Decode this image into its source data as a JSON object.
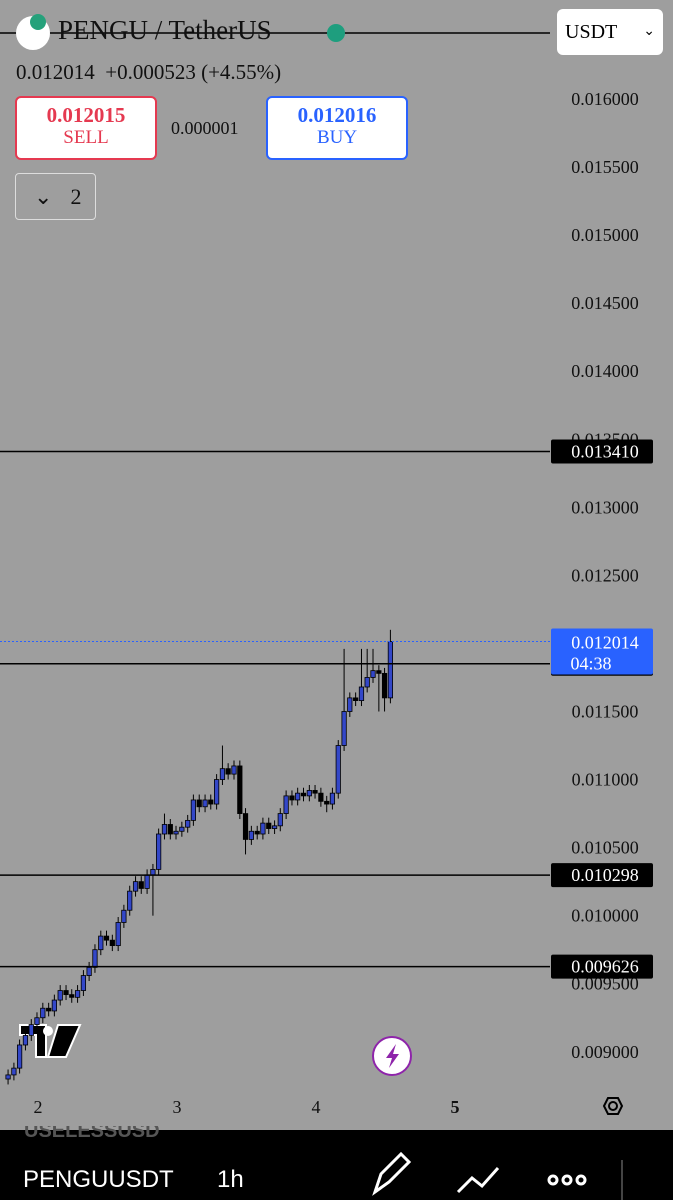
{
  "header": {
    "symbol": "PENGU / TetherUS",
    "last": "0.012014",
    "change": "+0.000523",
    "change_pct": "(+4.55%)",
    "sell_price": "0.012015",
    "sell_label": "SELL",
    "spread": "0.000001",
    "buy_price": "0.012016",
    "buy_label": "BUY",
    "indicators": "2",
    "currency": "USDT"
  },
  "chart_data": {
    "type": "candlestick",
    "x": [
      1.785,
      1.827,
      1.868,
      1.91,
      1.952,
      1.993,
      2.035,
      2.077,
      2.118,
      2.16,
      2.202,
      2.243,
      2.285,
      2.327,
      2.368,
      2.41,
      2.452,
      2.493,
      2.535,
      2.577,
      2.618,
      2.66,
      2.702,
      2.743,
      2.785,
      2.827,
      2.868,
      2.91,
      2.952,
      2.993,
      3.035,
      3.077,
      3.118,
      3.16,
      3.202,
      3.243,
      3.285,
      3.327,
      3.368,
      3.41,
      3.452,
      3.493,
      3.535,
      3.577,
      3.618,
      3.66,
      3.702,
      3.743,
      3.785,
      3.827,
      3.868,
      3.91,
      3.952,
      3.993,
      4.035,
      4.077,
      4.118,
      4.16,
      4.202,
      4.243,
      4.285,
      4.327,
      4.368,
      4.41,
      4.452,
      4.493,
      4.535
    ],
    "open": [
      0.0088,
      0.00883,
      0.00888,
      0.00905,
      0.00912,
      0.0092,
      0.00925,
      0.00932,
      0.0093,
      0.00938,
      0.00945,
      0.00942,
      0.0094,
      0.00945,
      0.00956,
      0.00962,
      0.00975,
      0.00985,
      0.00982,
      0.00978,
      0.00995,
      0.01004,
      0.01018,
      0.01025,
      0.0102,
      0.0103,
      0.01034,
      0.0106,
      0.01067,
      0.0106,
      0.01062,
      0.01065,
      0.0107,
      0.01085,
      0.0108,
      0.01085,
      0.01082,
      0.011,
      0.01108,
      0.01104,
      0.0111,
      0.01075,
      0.01056,
      0.01062,
      0.0106,
      0.01068,
      0.01064,
      0.01066,
      0.01075,
      0.01088,
      0.01085,
      0.0109,
      0.01088,
      0.01092,
      0.0109,
      0.01084,
      0.01082,
      0.0109,
      0.01125,
      0.0115,
      0.0116,
      0.01158,
      0.01168,
      0.01175,
      0.0118,
      0.01178,
      0.0116
    ],
    "high": [
      0.00887,
      0.00892,
      0.00909,
      0.00916,
      0.00924,
      0.00929,
      0.00936,
      0.00936,
      0.00942,
      0.00949,
      0.00949,
      0.00946,
      0.00949,
      0.0096,
      0.00966,
      0.00979,
      0.00989,
      0.00989,
      0.00986,
      0.00999,
      0.01008,
      0.01022,
      0.01029,
      0.01029,
      0.01034,
      0.01038,
      0.01064,
      0.01075,
      0.01071,
      0.01066,
      0.01069,
      0.01074,
      0.01089,
      0.01089,
      0.01089,
      0.01089,
      0.01104,
      0.01125,
      0.01112,
      0.01114,
      0.01114,
      0.01079,
      0.01066,
      0.01066,
      0.01072,
      0.01072,
      0.0107,
      0.01079,
      0.01092,
      0.01092,
      0.01094,
      0.01094,
      0.01096,
      0.01096,
      0.01094,
      0.01088,
      0.01094,
      0.01129,
      0.01196,
      0.01164,
      0.01164,
      0.01196,
      0.01196,
      0.01196,
      0.01184,
      0.01182,
      0.0121
    ],
    "low": [
      0.00876,
      0.00879,
      0.00884,
      0.00901,
      0.00908,
      0.00916,
      0.00921,
      0.00926,
      0.00926,
      0.00934,
      0.00938,
      0.00936,
      0.00936,
      0.00941,
      0.00952,
      0.00958,
      0.00971,
      0.00978,
      0.00974,
      0.00974,
      0.00991,
      0.01,
      0.01014,
      0.01016,
      0.01016,
      0.01,
      0.0103,
      0.01056,
      0.01056,
      0.01056,
      0.01058,
      0.01061,
      0.01066,
      0.01076,
      0.01076,
      0.01078,
      0.01078,
      0.01096,
      0.011,
      0.011,
      0.01071,
      0.01045,
      0.01052,
      0.01056,
      0.01056,
      0.0106,
      0.0106,
      0.01062,
      0.01071,
      0.01081,
      0.01081,
      0.01084,
      0.01084,
      0.01086,
      0.0108,
      0.01076,
      0.01078,
      0.01086,
      0.01121,
      0.01146,
      0.01154,
      0.01154,
      0.01164,
      0.01171,
      0.0115,
      0.0115,
      0.01156
    ],
    "close": [
      0.00883,
      0.00888,
      0.00905,
      0.00912,
      0.0092,
      0.00925,
      0.00932,
      0.0093,
      0.00938,
      0.00945,
      0.00942,
      0.0094,
      0.00945,
      0.00956,
      0.00962,
      0.00975,
      0.00985,
      0.00982,
      0.00978,
      0.00995,
      0.01004,
      0.01018,
      0.01025,
      0.0102,
      0.0103,
      0.01034,
      0.0106,
      0.01067,
      0.0106,
      0.01062,
      0.01065,
      0.0107,
      0.01085,
      0.0108,
      0.01085,
      0.01082,
      0.011,
      0.01108,
      0.01104,
      0.0111,
      0.01075,
      0.01056,
      0.01062,
      0.0106,
      0.01068,
      0.01064,
      0.01066,
      0.01075,
      0.01088,
      0.01085,
      0.0109,
      0.01088,
      0.01092,
      0.0109,
      0.01084,
      0.01082,
      0.0109,
      0.01125,
      0.0115,
      0.0116,
      0.01158,
      0.01168,
      0.01175,
      0.0118,
      0.01178,
      0.0116,
      0.012014
    ],
    "up_color": "#3347c8",
    "down_color": "#000000",
    "xlim": [
      1.727,
      5.683
    ],
    "xticks": [
      2,
      3,
      4,
      5
    ],
    "ylim": [
      0.008756,
      0.016727
    ],
    "yticks": [
      {
        "value": 0.016,
        "label": "0.016000"
      },
      {
        "value": 0.0155,
        "label": "0.015500"
      },
      {
        "value": 0.015,
        "label": "0.015000"
      },
      {
        "value": 0.0145,
        "label": "0.014500"
      },
      {
        "value": 0.014,
        "label": "0.014000"
      },
      {
        "value": 0.0135,
        "label": "0.013500"
      },
      {
        "value": 0.013,
        "label": "0.013000"
      },
      {
        "value": 0.0125,
        "label": "0.012500"
      },
      {
        "value": 0.0115,
        "label": "0.011500"
      },
      {
        "value": 0.011,
        "label": "0.011000"
      },
      {
        "value": 0.0105,
        "label": "0.010500"
      },
      {
        "value": 0.01,
        "label": "0.010000"
      },
      {
        "value": 0.0095,
        "label": "0.009500"
      },
      {
        "value": 0.009,
        "label": "0.009000"
      }
    ],
    "hlines": [
      {
        "value": 0.01341,
        "label": "0.013410"
      },
      0.011851,
      0.010298,
      0.009626
    ],
    "last_price": {
      "value": 0.012014,
      "countdown": "04:38",
      "color": "#2962ff"
    }
  },
  "bottom_bar": {
    "symbol": "PENGUUSDT",
    "interval": "1h",
    "hidden_symbol": "USELESSUSD"
  }
}
